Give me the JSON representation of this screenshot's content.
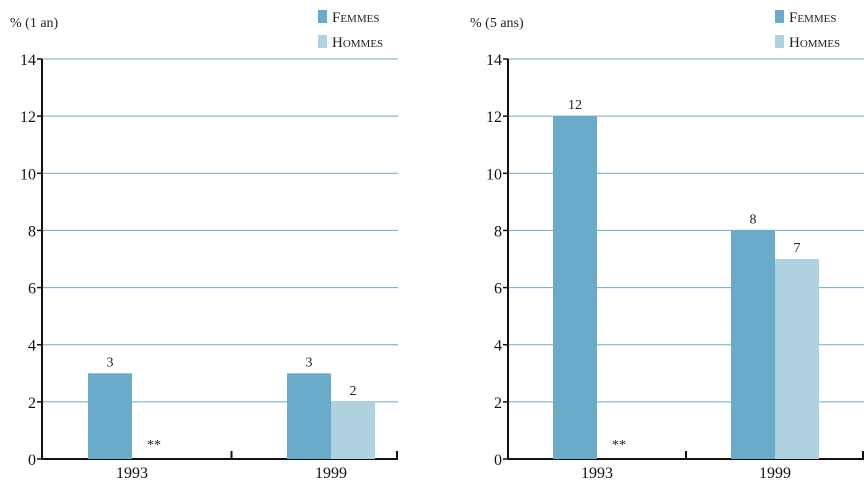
{
  "colors": {
    "femmes": "#6aabca",
    "hommes": "#afd2e1",
    "grid": "#6aabca",
    "axis": "#111111"
  },
  "chart_data": [
    {
      "type": "bar",
      "ylabel": "% (1 an)",
      "ylim": [
        0,
        14
      ],
      "yticks": [
        0,
        2,
        4,
        6,
        8,
        10,
        12,
        14
      ],
      "grid": true,
      "legend_position": "top-right",
      "categories": [
        "1993",
        "1999"
      ],
      "series": [
        {
          "name": "Femmes",
          "values": [
            3,
            3
          ],
          "labels": [
            "3",
            "3"
          ]
        },
        {
          "name": "Hommes",
          "values": [
            null,
            2
          ],
          "labels": [
            "**",
            "2"
          ]
        }
      ]
    },
    {
      "type": "bar",
      "ylabel": "% (5 ans)",
      "ylim": [
        0,
        14
      ],
      "yticks": [
        0,
        2,
        4,
        6,
        8,
        10,
        12,
        14
      ],
      "grid": true,
      "legend_position": "top-right",
      "categories": [
        "1993",
        "1999"
      ],
      "series": [
        {
          "name": "Femmes",
          "values": [
            12,
            8
          ],
          "labels": [
            "12",
            "8"
          ]
        },
        {
          "name": "Hommes",
          "values": [
            null,
            7
          ],
          "labels": [
            "**",
            "7"
          ]
        }
      ]
    }
  ]
}
